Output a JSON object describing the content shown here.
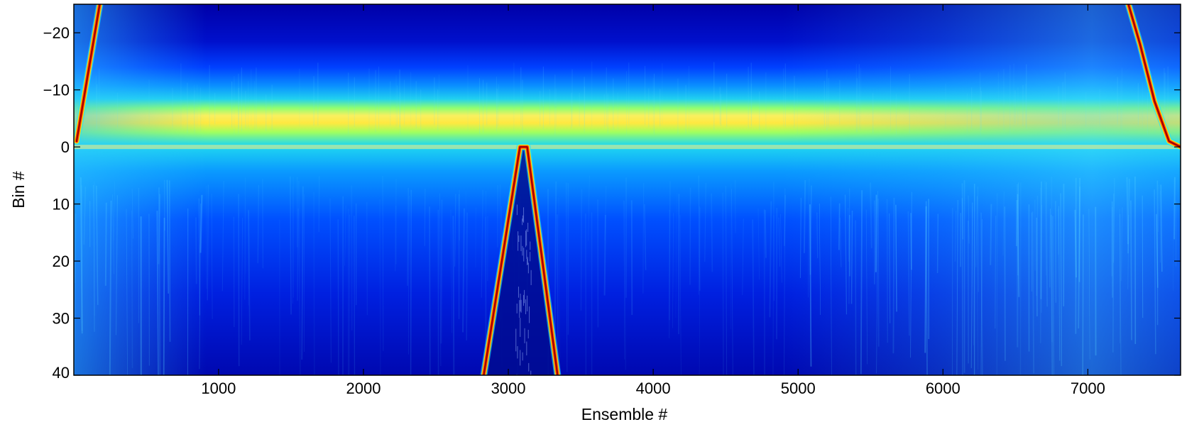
{
  "chart_data": {
    "type": "heatmap",
    "title": "",
    "xlabel": "Ensemble #",
    "ylabel": "Bin #",
    "xlim": [
      1,
      7640
    ],
    "ylim": [
      -25,
      40
    ],
    "y_reversed": true,
    "x_ticks": [
      1000,
      2000,
      3000,
      4000,
      5000,
      6000,
      7000
    ],
    "y_ticks": [
      -20,
      -10,
      0,
      10,
      20,
      30,
      40
    ],
    "x_tick_labels": [
      "1000",
      "2000",
      "3000",
      "4000",
      "5000",
      "6000",
      "7000"
    ],
    "y_tick_labels": [
      "−20",
      "−10",
      "0",
      "10",
      "20",
      "30",
      "40"
    ],
    "colormap": "jet",
    "grid": false,
    "features": {
      "surface_band_bin": 0,
      "bottom_track_left": [
        [
          20,
          -1
        ],
        [
          180,
          -25
        ]
      ],
      "bottom_track_center": [
        [
          2830,
          40
        ],
        [
          3080,
          0
        ],
        [
          3130,
          0
        ],
        [
          3340,
          40
        ]
      ],
      "bottom_track_right": [
        [
          7280,
          -25
        ],
        [
          7360,
          -18
        ],
        [
          7460,
          -8
        ],
        [
          7560,
          -1
        ],
        [
          7640,
          0
        ]
      ]
    }
  }
}
